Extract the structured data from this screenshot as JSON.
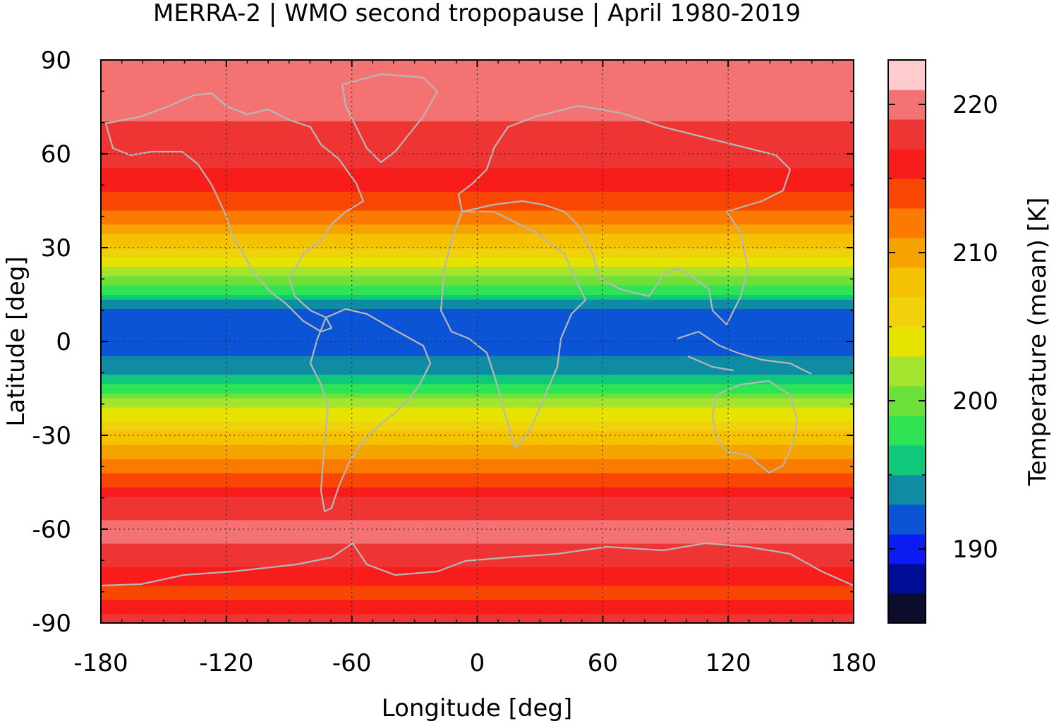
{
  "chart_data": {
    "type": "heatmap",
    "title": "MERRA-2 | WMO second tropopause | April 1980-2019",
    "xlabel": "Longitude [deg]",
    "ylabel": "Latitude [deg]",
    "xlim": [
      -180,
      180
    ],
    "ylim": [
      -90,
      90
    ],
    "xticks": [
      "-180",
      "-120",
      "-60",
      "0",
      "60",
      "120",
      "180"
    ],
    "yticks": [
      "90",
      "60",
      "30",
      "0",
      "-30",
      "-60",
      "-90"
    ],
    "grid": true,
    "colorbar": {
      "label": "Temperature (mean) [K]",
      "range": [
        185,
        223
      ],
      "ticks": [
        "220",
        "210",
        "200",
        "190"
      ],
      "colors": [
        "#0c0c2c",
        "#000c96",
        "#0b1cf3",
        "#0a54d5",
        "#0f8ca3",
        "#10c87a",
        "#2ee354",
        "#6ee03a",
        "#a4e32e",
        "#e6e300",
        "#f0d10c",
        "#f4c200",
        "#f5a300",
        "#fb7a00",
        "#f94605",
        "#f81c1a",
        "#ef3434",
        "#f47372",
        "#ffcccd"
      ]
    },
    "zonal_profile": {
      "lat": [
        -90,
        -80,
        -70,
        -60,
        -50,
        -40,
        -30,
        -20,
        -10,
        0,
        10,
        20,
        30,
        40,
        50,
        60,
        70,
        80,
        90
      ],
      "temperature": [
        218,
        214,
        218,
        220,
        217,
        212,
        208,
        202,
        194,
        192,
        193,
        200,
        207,
        212,
        216,
        218,
        219,
        219,
        220
      ]
    }
  }
}
